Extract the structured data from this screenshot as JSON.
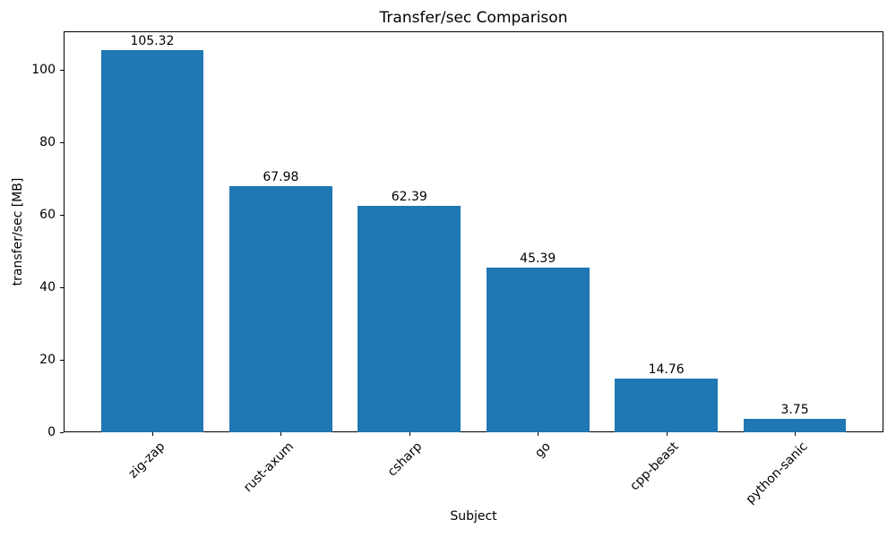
{
  "chart_data": {
    "type": "bar",
    "title": "Transfer/sec Comparison",
    "xlabel": "Subject",
    "ylabel": "transfer/sec [MB]",
    "categories": [
      "zig-zap",
      "rust-axum",
      "csharp",
      "go",
      "cpp-beast",
      "python-sanic"
    ],
    "values": [
      105.32,
      67.98,
      62.39,
      45.39,
      14.76,
      3.75
    ],
    "value_labels": [
      "105.32",
      "67.98",
      "62.39",
      "45.39",
      "14.76",
      "3.75"
    ],
    "yticks": [
      0,
      20,
      40,
      60,
      80,
      100
    ],
    "ylim": [
      0,
      110.6
    ],
    "bar_color": "#1f77b4",
    "axis_color": "#000000",
    "text_color": "#000000",
    "x_tick_rotation_deg": 45,
    "grid": false,
    "legend": null
  }
}
